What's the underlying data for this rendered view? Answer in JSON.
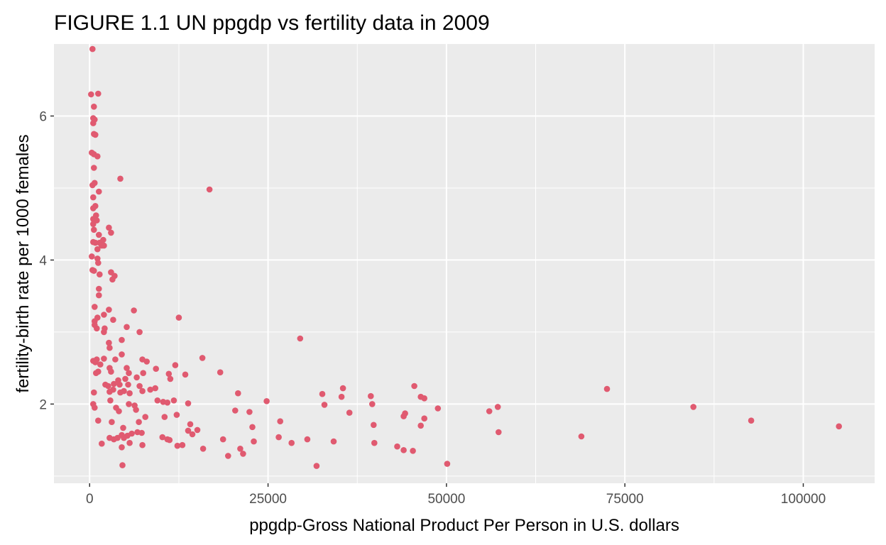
{
  "chart_data": {
    "type": "scatter",
    "title": "FIGURE 1.1 UN ppgdp vs fertility data in 2009",
    "xlabel": "ppgdp-Gross National Product Per Person in U.S. dollars",
    "ylabel": "fertility-birth rate per 1000 females",
    "xlim": [
      -5000,
      110000
    ],
    "ylim": [
      0.9,
      7.0
    ],
    "x_ticks": [
      0,
      25000,
      50000,
      75000,
      100000
    ],
    "x_tick_labels": [
      "0",
      "25000",
      "50000",
      "75000",
      "100000"
    ],
    "y_ticks": [
      2,
      4,
      6
    ],
    "y_tick_labels": [
      "2",
      "4",
      "6"
    ],
    "grid": true,
    "panel_background": "#ebebeb",
    "grid_color": "#ffffff",
    "point_color": "#e05a70",
    "points": [
      [
        400,
        6.93
      ],
      [
        200,
        6.3
      ],
      [
        1200,
        6.31
      ],
      [
        600,
        6.13
      ],
      [
        500,
        5.97
      ],
      [
        700,
        5.95
      ],
      [
        500,
        5.9
      ],
      [
        600,
        5.75
      ],
      [
        800,
        5.74
      ],
      [
        300,
        5.49
      ],
      [
        600,
        5.47
      ],
      [
        1100,
        5.44
      ],
      [
        600,
        5.28
      ],
      [
        4300,
        5.13
      ],
      [
        700,
        5.07
      ],
      [
        400,
        5.04
      ],
      [
        1300,
        4.95
      ],
      [
        16800,
        4.98
      ],
      [
        500,
        4.87
      ],
      [
        800,
        4.75
      ],
      [
        500,
        4.72
      ],
      [
        900,
        4.62
      ],
      [
        500,
        4.57
      ],
      [
        1000,
        4.55
      ],
      [
        500,
        4.5
      ],
      [
        600,
        4.42
      ],
      [
        1300,
        4.35
      ],
      [
        2700,
        4.45
      ],
      [
        3000,
        4.38
      ],
      [
        500,
        4.25
      ],
      [
        800,
        4.24
      ],
      [
        1400,
        4.24
      ],
      [
        1900,
        4.28
      ],
      [
        1700,
        4.2
      ],
      [
        2000,
        4.2
      ],
      [
        1100,
        4.15
      ],
      [
        300,
        4.05
      ],
      [
        1100,
        4.02
      ],
      [
        1200,
        3.96
      ],
      [
        400,
        3.86
      ],
      [
        600,
        3.85
      ],
      [
        3000,
        3.83
      ],
      [
        3500,
        3.78
      ],
      [
        1400,
        3.8
      ],
      [
        3200,
        3.73
      ],
      [
        1300,
        3.6
      ],
      [
        1300,
        3.51
      ],
      [
        700,
        3.35
      ],
      [
        6200,
        3.3
      ],
      [
        2700,
        3.31
      ],
      [
        1100,
        3.2
      ],
      [
        2000,
        3.24
      ],
      [
        700,
        3.15
      ],
      [
        3300,
        3.17
      ],
      [
        700,
        3.1
      ],
      [
        1000,
        3.05
      ],
      [
        2100,
        3.05
      ],
      [
        5200,
        3.07
      ],
      [
        2000,
        3.0
      ],
      [
        7000,
        3.0
      ],
      [
        12500,
        3.2
      ],
      [
        29500,
        2.91
      ],
      [
        2700,
        2.85
      ],
      [
        4500,
        2.89
      ],
      [
        2800,
        2.78
      ],
      [
        4500,
        2.69
      ],
      [
        2000,
        2.63
      ],
      [
        3600,
        2.62
      ],
      [
        7400,
        2.62
      ],
      [
        1000,
        2.62
      ],
      [
        8000,
        2.59
      ],
      [
        15800,
        2.64
      ],
      [
        500,
        2.6
      ],
      [
        800,
        2.58
      ],
      [
        1500,
        2.55
      ],
      [
        12000,
        2.54
      ],
      [
        2800,
        2.5
      ],
      [
        5200,
        2.5
      ],
      [
        9300,
        2.49
      ],
      [
        3000,
        2.45
      ],
      [
        1200,
        2.45
      ],
      [
        900,
        2.43
      ],
      [
        5500,
        2.43
      ],
      [
        7500,
        2.43
      ],
      [
        18300,
        2.44
      ],
      [
        11100,
        2.42
      ],
      [
        13400,
        2.41
      ],
      [
        6600,
        2.37
      ],
      [
        5000,
        2.35
      ],
      [
        4000,
        2.33
      ],
      [
        11300,
        2.35
      ],
      [
        2200,
        2.27
      ],
      [
        4200,
        2.27
      ],
      [
        2600,
        2.25
      ],
      [
        5400,
        2.27
      ],
      [
        7000,
        2.25
      ],
      [
        3400,
        2.28
      ],
      [
        9200,
        2.22
      ],
      [
        8500,
        2.2
      ],
      [
        45500,
        2.25
      ],
      [
        35500,
        2.22
      ],
      [
        72500,
        2.21
      ],
      [
        3300,
        2.2
      ],
      [
        4800,
        2.18
      ],
      [
        7400,
        2.18
      ],
      [
        2800,
        2.17
      ],
      [
        600,
        2.16
      ],
      [
        4300,
        2.16
      ],
      [
        5600,
        2.15
      ],
      [
        20800,
        2.15
      ],
      [
        32600,
        2.14
      ],
      [
        39400,
        2.11
      ],
      [
        35300,
        2.1
      ],
      [
        46400,
        2.1
      ],
      [
        46900,
        2.08
      ],
      [
        2900,
        2.05
      ],
      [
        9500,
        2.05
      ],
      [
        11800,
        2.05
      ],
      [
        10300,
        2.03
      ],
      [
        24800,
        2.04
      ],
      [
        10900,
        2.02
      ],
      [
        13800,
        2.01
      ],
      [
        32900,
        1.99
      ],
      [
        39600,
        2.0
      ],
      [
        500,
        2.0
      ],
      [
        700,
        1.95
      ],
      [
        5500,
        2.0
      ],
      [
        6300,
        1.98
      ],
      [
        57200,
        1.96
      ],
      [
        84600,
        1.96
      ],
      [
        3700,
        1.95
      ],
      [
        6500,
        1.92
      ],
      [
        48800,
        1.94
      ],
      [
        20400,
        1.91
      ],
      [
        4100,
        1.9
      ],
      [
        36400,
        1.88
      ],
      [
        22400,
        1.89
      ],
      [
        44200,
        1.87
      ],
      [
        56000,
        1.9
      ],
      [
        12200,
        1.85
      ],
      [
        7800,
        1.82
      ],
      [
        10500,
        1.82
      ],
      [
        44000,
        1.83
      ],
      [
        46900,
        1.8
      ],
      [
        26700,
        1.76
      ],
      [
        92700,
        1.77
      ],
      [
        1200,
        1.77
      ],
      [
        3100,
        1.75
      ],
      [
        6900,
        1.75
      ],
      [
        14100,
        1.72
      ],
      [
        22800,
        1.68
      ],
      [
        39800,
        1.71
      ],
      [
        46400,
        1.7
      ],
      [
        105000,
        1.69
      ],
      [
        4700,
        1.67
      ],
      [
        13800,
        1.63
      ],
      [
        15100,
        1.64
      ],
      [
        6700,
        1.61
      ],
      [
        14400,
        1.58
      ],
      [
        57300,
        1.61
      ],
      [
        5900,
        1.59
      ],
      [
        7300,
        1.6
      ],
      [
        4500,
        1.57
      ],
      [
        5300,
        1.56
      ],
      [
        4800,
        1.53
      ],
      [
        2800,
        1.53
      ],
      [
        10200,
        1.54
      ],
      [
        26500,
        1.54
      ],
      [
        68900,
        1.55
      ],
      [
        3400,
        1.51
      ],
      [
        3900,
        1.53
      ],
      [
        10900,
        1.51
      ],
      [
        11200,
        1.5
      ],
      [
        18700,
        1.51
      ],
      [
        30500,
        1.51
      ],
      [
        23000,
        1.48
      ],
      [
        34200,
        1.48
      ],
      [
        1700,
        1.45
      ],
      [
        5600,
        1.46
      ],
      [
        28300,
        1.46
      ],
      [
        39900,
        1.46
      ],
      [
        7400,
        1.43
      ],
      [
        12300,
        1.42
      ],
      [
        13000,
        1.43
      ],
      [
        43100,
        1.41
      ],
      [
        15900,
        1.38
      ],
      [
        21100,
        1.38
      ],
      [
        44000,
        1.36
      ],
      [
        45300,
        1.35
      ],
      [
        4500,
        1.4
      ],
      [
        21500,
        1.31
      ],
      [
        19400,
        1.28
      ],
      [
        4600,
        1.15
      ],
      [
        31800,
        1.14
      ],
      [
        50100,
        1.17
      ]
    ]
  }
}
